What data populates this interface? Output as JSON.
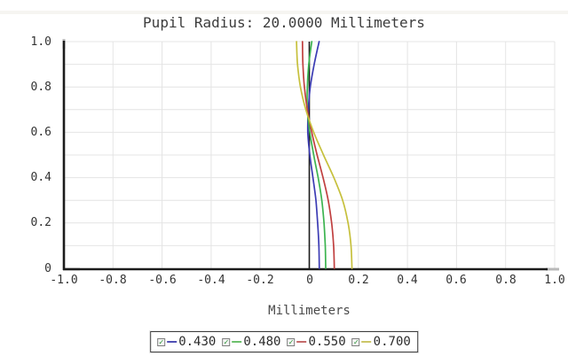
{
  "page": {
    "top_band_color": "#efece6"
  },
  "chart_data": {
    "type": "line",
    "title": "Pupil Radius: 20.0000 Millimeters",
    "xlabel": "Millimeters",
    "ylabel": "",
    "xlim": [
      -1.0,
      1.0
    ],
    "ylim": [
      0,
      1.0
    ],
    "grid": {
      "enabled": true,
      "x_step": 0.2,
      "y_step": 0.1,
      "color": "#e4e4e4"
    },
    "axis_color": "#1c1c1c",
    "axis_cap_color": "#b9b9b9",
    "zero_line_x": 0,
    "x_ticks": {
      "values": [
        -1.0,
        -0.8,
        -0.6,
        -0.4,
        -0.2,
        0,
        0.2,
        0.4,
        0.6,
        0.8,
        1.0
      ],
      "labels": [
        "-1.0",
        "-0.8",
        "-0.6",
        "-0.4",
        "-0.2",
        "0",
        "0.2",
        "0.4",
        "0.6",
        "0.8",
        "1.0"
      ]
    },
    "y_ticks": {
      "values": [
        1.0,
        0.8,
        0.6,
        0.4,
        0.2,
        0
      ],
      "labels": [
        "1.0",
        "0.8",
        "0.6",
        "0.4",
        "0.2",
        "0"
      ]
    },
    "series": [
      {
        "name": "0.430",
        "color": "#3c3cb4",
        "points_mm_pupil": [
          [
            0.04,
            1.0
          ],
          [
            0.02,
            0.9
          ],
          [
            0.004,
            0.8
          ],
          [
            -0.004,
            0.7
          ],
          [
            -0.006,
            0.6
          ],
          [
            0.002,
            0.5
          ],
          [
            0.015,
            0.4
          ],
          [
            0.027,
            0.3
          ],
          [
            0.034,
            0.2
          ],
          [
            0.039,
            0.1
          ],
          [
            0.041,
            0.0
          ]
        ]
      },
      {
        "name": "0.480",
        "color": "#3cb450",
        "points_mm_pupil": [
          [
            0.01,
            1.0
          ],
          [
            -0.002,
            0.9
          ],
          [
            -0.008,
            0.8
          ],
          [
            -0.008,
            0.7
          ],
          [
            0.002,
            0.6
          ],
          [
            0.018,
            0.5
          ],
          [
            0.036,
            0.4
          ],
          [
            0.051,
            0.3
          ],
          [
            0.06,
            0.2
          ],
          [
            0.065,
            0.1
          ],
          [
            0.067,
            0.0
          ]
        ]
      },
      {
        "name": "0.550",
        "color": "#c04040",
        "points_mm_pupil": [
          [
            -0.028,
            1.0
          ],
          [
            -0.026,
            0.9
          ],
          [
            -0.02,
            0.8
          ],
          [
            -0.008,
            0.7
          ],
          [
            0.01,
            0.6
          ],
          [
            0.032,
            0.5
          ],
          [
            0.056,
            0.4
          ],
          [
            0.077,
            0.3
          ],
          [
            0.091,
            0.2
          ],
          [
            0.099,
            0.1
          ],
          [
            0.102,
            0.0
          ]
        ]
      },
      {
        "name": "0.700",
        "color": "#c6c03c",
        "points_mm_pupil": [
          [
            -0.052,
            1.0
          ],
          [
            -0.048,
            0.9
          ],
          [
            -0.036,
            0.8
          ],
          [
            -0.014,
            0.7
          ],
          [
            0.018,
            0.6
          ],
          [
            0.058,
            0.5
          ],
          [
            0.1,
            0.4
          ],
          [
            0.136,
            0.3
          ],
          [
            0.158,
            0.2
          ],
          [
            0.17,
            0.1
          ],
          [
            0.174,
            0.0
          ]
        ]
      }
    ],
    "legend": {
      "position": "bottom-center",
      "checkbox_glyph": "✓",
      "entries": [
        {
          "label": "0.430",
          "color": "#5050b4",
          "checked": true
        },
        {
          "label": "0.480",
          "color": "#6cc06c",
          "checked": true
        },
        {
          "label": "0.550",
          "color": "#c46a6a",
          "checked": true
        },
        {
          "label": "0.700",
          "color": "#ccc668",
          "checked": true
        }
      ]
    }
  }
}
